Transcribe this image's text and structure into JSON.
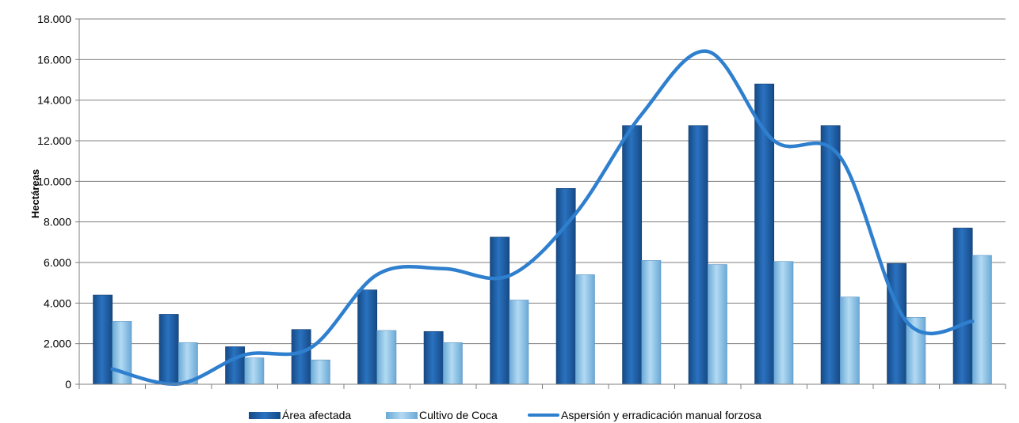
{
  "chart_data": {
    "type": "bar",
    "title": "",
    "xlabel": "",
    "ylabel": "Hectáreas",
    "ylim": [
      0,
      18000
    ],
    "yticks": [
      0,
      2000,
      4000,
      6000,
      8000,
      10000,
      12000,
      14000,
      16000,
      18000
    ],
    "ytick_labels": [
      "0",
      "2.000",
      "4.000",
      "6.000",
      "8.000",
      "10.000",
      "12.000",
      "14.000",
      "16.000",
      "18.000"
    ],
    "categories": [
      "",
      "",
      "",
      "",
      "",
      "",
      "",
      "",
      "",
      "",
      "",
      "",
      "",
      ""
    ],
    "grid": true,
    "legend_position": "bottom",
    "series": [
      {
        "name": "Área afectada",
        "kind": "bar",
        "color": "#1f5fa8",
        "values": [
          4400,
          3450,
          1850,
          2700,
          4650,
          2600,
          7250,
          9650,
          12750,
          12750,
          14800,
          12750,
          5950,
          7700
        ]
      },
      {
        "name": "Cultivo de Coca",
        "kind": "bar",
        "color": "#8fc4e8",
        "values": [
          3100,
          2050,
          1300,
          1200,
          2650,
          2050,
          4150,
          5400,
          6100,
          5900,
          6050,
          4300,
          3300,
          6350
        ]
      },
      {
        "name": "Aspersión y erradicación manual forzosa",
        "kind": "line",
        "color": "#2f7fcf",
        "values": [
          750,
          20,
          1450,
          1800,
          5400,
          5700,
          5350,
          8400,
          13300,
          16400,
          12000,
          11200,
          3100,
          3100
        ]
      }
    ]
  }
}
